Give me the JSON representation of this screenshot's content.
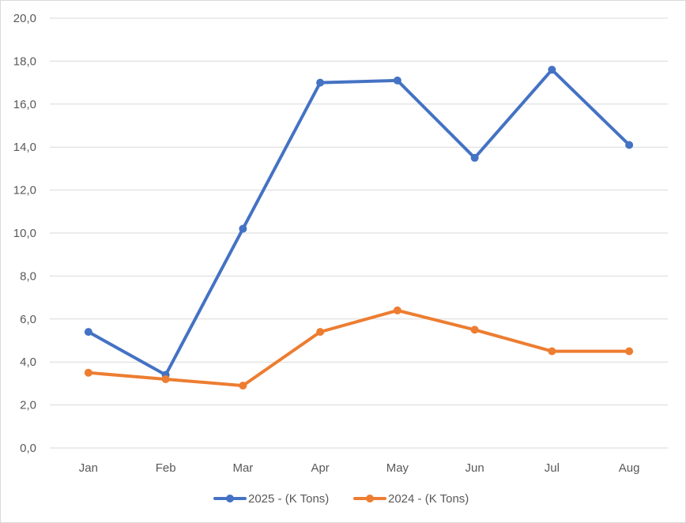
{
  "chart_data": {
    "type": "line",
    "title": "",
    "xlabel": "",
    "ylabel": "",
    "categories": [
      "Jan",
      "Feb",
      "Mar",
      "Apr",
      "May",
      "Jun",
      "Jul",
      "Aug"
    ],
    "ylim": [
      0,
      20
    ],
    "yticks": [
      "0,0",
      "2,0",
      "4,0",
      "6,0",
      "8,0",
      "10,0",
      "12,0",
      "14,0",
      "16,0",
      "18,0",
      "20,0"
    ],
    "grid": "horizontal",
    "legend": "bottom",
    "series": [
      {
        "name": "2025 - (K Tons)",
        "color": "#4472c4",
        "values": [
          5.4,
          3.4,
          10.2,
          17.0,
          17.1,
          13.5,
          17.6,
          14.1
        ]
      },
      {
        "name": "2024 - (K Tons)",
        "color": "#ed7d31",
        "values": [
          3.5,
          3.2,
          2.9,
          5.4,
          6.4,
          5.5,
          4.5,
          4.5
        ]
      }
    ]
  }
}
